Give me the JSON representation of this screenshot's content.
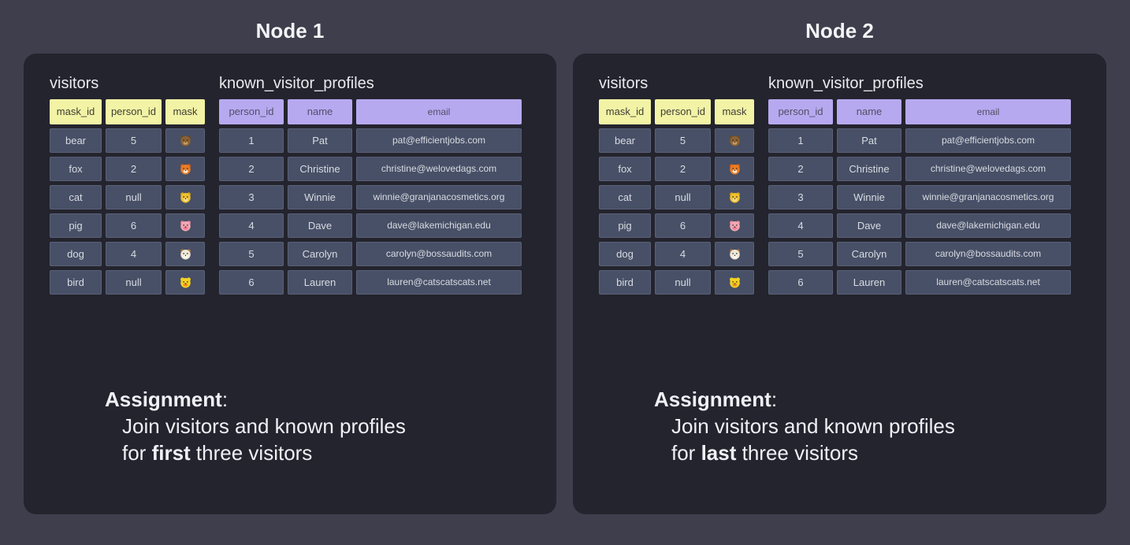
{
  "colors": {
    "page_bg": "#3E3E4D",
    "panel_bg": "#24242E",
    "cell_bg": "#475066",
    "cell_border": "#5A6078",
    "header_yellow": "#F2F3A5",
    "header_purple": "#B7A9F0",
    "cell_text": "#D9DBE3",
    "yellow_header_text": "#3E3E35",
    "purple_header_text": "#514F66",
    "title_text": "#E9E9EF",
    "node_title_text": "#F4F4F6",
    "assignment_text": "#EEF1F5"
  },
  "nodes": [
    {
      "title": "Node 1",
      "assignment": {
        "label": "Assignment",
        "colon": ":",
        "line1": "Join visitors and known profiles",
        "line2_prefix": "for ",
        "line2_bold": "first",
        "line2_suffix": " three visitors"
      }
    },
    {
      "title": "Node 2",
      "assignment": {
        "label": "Assignment",
        "colon": ":",
        "line1": "Join visitors and known profiles",
        "line2_prefix": "for ",
        "line2_bold": "last",
        "line2_suffix": " three visitors"
      }
    }
  ],
  "tables": {
    "visitors": {
      "title": "visitors",
      "header_style": "yellow",
      "columns": [
        {
          "key": "mask_id",
          "label": "mask_id"
        },
        {
          "key": "person_id",
          "label": "person_id"
        },
        {
          "key": "mask",
          "label": "mask",
          "type": "icon"
        }
      ],
      "rows": [
        {
          "mask_id": "bear",
          "person_id": "5",
          "mask": "bear-face-icon"
        },
        {
          "mask_id": "fox",
          "person_id": "2",
          "mask": "fox-face-icon"
        },
        {
          "mask_id": "cat",
          "person_id": "null",
          "mask": "cat-face-icon"
        },
        {
          "mask_id": "pig",
          "person_id": "6",
          "mask": "pig-face-icon"
        },
        {
          "mask_id": "dog",
          "person_id": "4",
          "mask": "dog-face-icon"
        },
        {
          "mask_id": "bird",
          "person_id": "null",
          "mask": "bird-face-icon"
        }
      ]
    },
    "known_visitor_profiles": {
      "title": "known_visitor_profiles",
      "header_style": "purple",
      "columns": [
        {
          "key": "person_id",
          "label": "person_id"
        },
        {
          "key": "name",
          "label": "name"
        },
        {
          "key": "email",
          "label": "email"
        }
      ],
      "rows": [
        {
          "person_id": "1",
          "name": "Pat",
          "email": "pat@efficientjobs.com"
        },
        {
          "person_id": "2",
          "name": "Christine",
          "email": "christine@welovedags.com"
        },
        {
          "person_id": "3",
          "name": "Winnie",
          "email": "winnie@granjanacosmetics.org"
        },
        {
          "person_id": "4",
          "name": "Dave",
          "email": "dave@lakemichigan.edu"
        },
        {
          "person_id": "5",
          "name": "Carolyn",
          "email": "carolyn@bossaudits.com"
        },
        {
          "person_id": "6",
          "name": "Lauren",
          "email": "lauren@catscatscats.net"
        }
      ]
    }
  },
  "icons": {
    "bear-face-icon": {
      "main": "#8A6234",
      "ear": "#6F4B22",
      "muzzle": "#C49A62"
    },
    "fox-face-icon": {
      "main": "#EC7C23",
      "ear": "#E06010",
      "muzzle": "#FAE7D2"
    },
    "cat-face-icon": {
      "main": "#EFC12F",
      "ear": "#D8A31C",
      "muzzle": "#F8E08E"
    },
    "pig-face-icon": {
      "main": "#F2A7B4",
      "ear": "#EA8CA0",
      "muzzle": "#E97D92"
    },
    "dog-face-icon": {
      "main": "#F0E8D8",
      "ear": "#A9733D",
      "muzzle": "#FBF7EE"
    },
    "bird-face-icon": {
      "main": "#F4D222",
      "ear": "#F4D222",
      "muzzle": "#F09420"
    }
  }
}
